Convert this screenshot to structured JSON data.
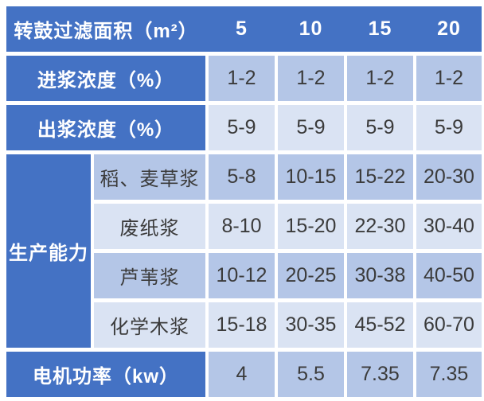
{
  "table": {
    "header": {
      "label": "转鼓过滤面积（m²）",
      "columns": [
        "5",
        "10",
        "15",
        "20"
      ]
    },
    "rows": [
      {
        "label": "进浆浓度（%）",
        "values": [
          "1-2",
          "1-2",
          "1-2",
          "1-2"
        ]
      },
      {
        "label": "出浆浓度（%）",
        "values": [
          "5-9",
          "5-9",
          "5-9",
          "5-9"
        ]
      }
    ],
    "capacity": {
      "label": "生产能力",
      "rows": [
        {
          "label": "稻、麦草浆",
          "values": [
            "5-8",
            "10-15",
            "15-22",
            "20-30"
          ]
        },
        {
          "label": "废纸浆",
          "values": [
            "8-10",
            "15-20",
            "22-30",
            "30-40"
          ]
        },
        {
          "label": "芦苇浆",
          "values": [
            "10-12",
            "20-25",
            "30-38",
            "40-50"
          ]
        },
        {
          "label": "化学木浆",
          "values": [
            "15-18",
            "30-35",
            "45-52",
            "60-70"
          ]
        }
      ]
    },
    "footer": {
      "label": "电机功率（kw）",
      "values": [
        "4",
        "5.5",
        "7.35",
        "7.35"
      ]
    }
  },
  "colors": {
    "header_blue": "#4472C4",
    "band_dark": "#B4C6E7",
    "band_light": "#DAE3F3",
    "value_text": "#3B3B3B",
    "label_text": "#FFFFFF",
    "background": "#FFFFFF"
  }
}
